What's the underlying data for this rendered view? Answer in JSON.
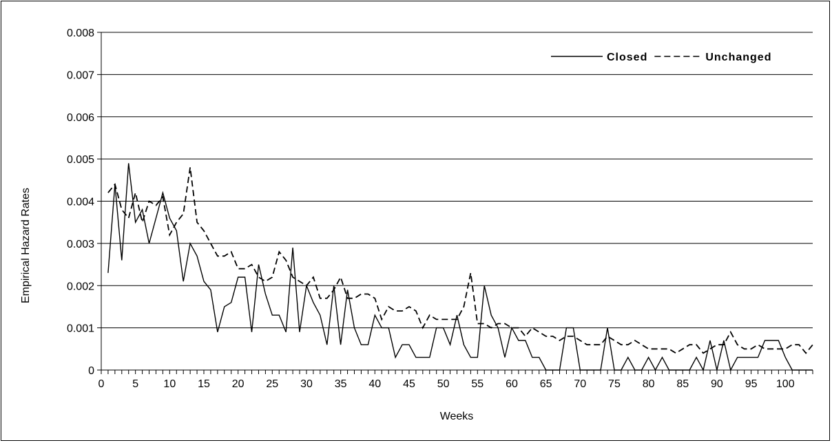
{
  "chart_data": {
    "type": "line",
    "title": "",
    "xlabel": "Weeks",
    "ylabel": "Empirical Hazard Rates",
    "xlim": [
      0,
      104
    ],
    "ylim": [
      0,
      0.008
    ],
    "yticks": [
      "0",
      "0.001",
      "0.002",
      "0.003",
      "0.004",
      "0.005",
      "0.006",
      "0.007",
      "0.008"
    ],
    "xticks": [
      "0",
      "5",
      "10",
      "15",
      "20",
      "25",
      "30",
      "35",
      "40",
      "45",
      "50",
      "55",
      "60",
      "65",
      "70",
      "75",
      "80",
      "85",
      "90",
      "95",
      "100"
    ],
    "grid": "horizontal",
    "legend_position": "top-right",
    "series": [
      {
        "name": "Closed",
        "style": "solid",
        "x": [
          1,
          2,
          3,
          4,
          5,
          6,
          7,
          8,
          9,
          10,
          11,
          12,
          13,
          14,
          15,
          16,
          17,
          18,
          19,
          20,
          21,
          22,
          23,
          24,
          25,
          26,
          27,
          28,
          29,
          30,
          31,
          32,
          33,
          34,
          35,
          36,
          37,
          38,
          39,
          40,
          41,
          42,
          43,
          44,
          45,
          46,
          47,
          48,
          49,
          50,
          51,
          52,
          53,
          54,
          55,
          56,
          57,
          58,
          59,
          60,
          61,
          62,
          63,
          64,
          65,
          66,
          67,
          68,
          69,
          70,
          71,
          72,
          73,
          74,
          75,
          76,
          77,
          78,
          79,
          80,
          81,
          82,
          83,
          84,
          85,
          86,
          87,
          88,
          89,
          90,
          91,
          92,
          93,
          94,
          95,
          96,
          97,
          98,
          99,
          100,
          101,
          102,
          103,
          104
        ],
        "values": [
          0.0023,
          0.0044,
          0.0026,
          0.0049,
          0.0035,
          0.0038,
          0.003,
          0.0036,
          0.0042,
          0.0036,
          0.0033,
          0.0021,
          0.003,
          0.0027,
          0.0021,
          0.0019,
          0.0009,
          0.0015,
          0.0016,
          0.0022,
          0.0022,
          0.0009,
          0.0025,
          0.0018,
          0.0013,
          0.0013,
          0.0009,
          0.0029,
          0.0009,
          0.002,
          0.0016,
          0.0013,
          0.0006,
          0.002,
          0.0006,
          0.0019,
          0.001,
          0.0006,
          0.0006,
          0.0013,
          0.001,
          0.001,
          0.0003,
          0.0006,
          0.0006,
          0.0003,
          0.0003,
          0.0003,
          0.001,
          0.001,
          0.0006,
          0.0013,
          0.0006,
          0.0003,
          0.0003,
          0.002,
          0.0013,
          0.001,
          0.0003,
          0.001,
          0.0007,
          0.0007,
          0.0003,
          0.0003,
          0,
          0,
          0,
          0.001,
          0.001,
          0,
          0,
          0,
          0,
          0.001,
          0,
          0,
          0.0003,
          0,
          0,
          0.0003,
          0,
          0.0003,
          0,
          0,
          0,
          0,
          0.0003,
          0,
          0.0007,
          0,
          0.0007,
          0,
          0.0003,
          0.0003,
          0.0003,
          0.0003,
          0.0007,
          0.0007,
          0.0007,
          0.0003,
          0,
          0,
          0,
          0
        ]
      },
      {
        "name": "Unchanged",
        "style": "dashed",
        "x": [
          1,
          2,
          3,
          4,
          5,
          6,
          7,
          8,
          9,
          10,
          11,
          12,
          13,
          14,
          15,
          16,
          17,
          18,
          19,
          20,
          21,
          22,
          23,
          24,
          25,
          26,
          27,
          28,
          29,
          30,
          31,
          32,
          33,
          34,
          35,
          36,
          37,
          38,
          39,
          40,
          41,
          42,
          43,
          44,
          45,
          46,
          47,
          48,
          49,
          50,
          51,
          52,
          53,
          54,
          55,
          56,
          57,
          58,
          59,
          60,
          61,
          62,
          63,
          64,
          65,
          66,
          67,
          68,
          69,
          70,
          71,
          72,
          73,
          74,
          75,
          76,
          77,
          78,
          79,
          80,
          81,
          82,
          83,
          84,
          85,
          86,
          87,
          88,
          89,
          90,
          91,
          92,
          93,
          94,
          95,
          96,
          97,
          98,
          99,
          100,
          101,
          102,
          103,
          104
        ],
        "values": [
          0.0042,
          0.0044,
          0.0038,
          0.0036,
          0.0042,
          0.0035,
          0.004,
          0.0039,
          0.0041,
          0.0032,
          0.0035,
          0.0037,
          0.0048,
          0.0035,
          0.0033,
          0.003,
          0.0027,
          0.0027,
          0.0028,
          0.0024,
          0.0024,
          0.0025,
          0.0022,
          0.0021,
          0.0022,
          0.0028,
          0.0026,
          0.0022,
          0.0021,
          0.002,
          0.0022,
          0.0017,
          0.0017,
          0.0019,
          0.0022,
          0.0017,
          0.0017,
          0.0018,
          0.0018,
          0.0017,
          0.0012,
          0.0015,
          0.0014,
          0.0014,
          0.0015,
          0.0014,
          0.001,
          0.0013,
          0.0012,
          0.0012,
          0.0012,
          0.0012,
          0.0015,
          0.0023,
          0.0011,
          0.0011,
          0.001,
          0.0011,
          0.0011,
          0.001,
          0.001,
          0.0008,
          0.001,
          0.0009,
          0.0008,
          0.0008,
          0.0007,
          0.0008,
          0.0008,
          0.0007,
          0.0006,
          0.0006,
          0.0006,
          0.0008,
          0.0007,
          0.0006,
          0.0006,
          0.0007,
          0.0006,
          0.0005,
          0.0005,
          0.0005,
          0.0005,
          0.0004,
          0.0005,
          0.0006,
          0.0006,
          0.0004,
          0.0005,
          0.0006,
          0.0006,
          0.0009,
          0.0006,
          0.0005,
          0.0005,
          0.0006,
          0.0005,
          0.0005,
          0.0005,
          0.0005,
          0.0006,
          0.0006,
          0.0004,
          0.0006
        ]
      }
    ]
  }
}
